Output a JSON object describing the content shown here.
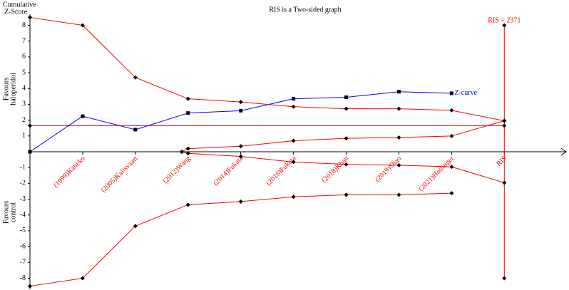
{
  "chart_data": {
    "type": "line",
    "title": "RIS is a Two-sided graph",
    "y_label": [
      "Cumulative",
      "Z-Score"
    ],
    "favours_top": [
      "Favours",
      "haloperidol"
    ],
    "favours_bottom": [
      "Favours",
      "control"
    ],
    "categories": [
      "(1999)Kaneko",
      "(2005)Kalisvaart",
      "(2012)Wang",
      "(2014)Fukata",
      "(2016)Fukata",
      "(2018)Khan",
      "(2019)Shao",
      "(2021)Hollinger",
      "RIS"
    ],
    "category_x": [
      1,
      2,
      3,
      4,
      5,
      6,
      7,
      8,
      9
    ],
    "xlim": [
      0,
      10.2
    ],
    "ylim": [
      -8.7,
      8.7
    ],
    "yticks": [
      8,
      7,
      6,
      5,
      4,
      3,
      2,
      1,
      -1,
      -2,
      -3,
      -4,
      -5,
      -6,
      -7,
      -8
    ],
    "series": [
      {
        "name": "Z-curve",
        "color": "#0000ff",
        "marker": "square",
        "x": [
          0,
          1,
          2,
          3,
          4,
          5,
          6,
          7,
          8
        ],
        "values": [
          0,
          2.25,
          1.4,
          2.45,
          2.6,
          3.35,
          3.45,
          3.8,
          3.7
        ]
      },
      {
        "color": "#ff0000",
        "marker": "diamond",
        "x": [
          0,
          1,
          2,
          3,
          4,
          5,
          6,
          7,
          8,
          9
        ],
        "values": [
          8.5,
          8.0,
          4.7,
          3.35,
          3.15,
          2.85,
          2.72,
          2.72,
          2.62,
          1.96
        ]
      },
      {
        "color": "#ff0000",
        "marker": "diamond",
        "x": [
          0,
          1,
          2,
          3,
          4,
          5,
          6,
          7,
          8
        ],
        "values": [
          -8.5,
          -8.0,
          -4.7,
          -3.35,
          -3.15,
          -2.85,
          -2.72,
          -2.72,
          -2.62
        ]
      },
      {
        "color": "#ff0000",
        "marker": "diamond",
        "x": [
          2.88,
          3,
          4,
          5,
          6,
          7,
          8,
          9
        ],
        "values": [
          0,
          0.2,
          0.35,
          0.7,
          0.85,
          0.9,
          1.0,
          1.96
        ]
      },
      {
        "color": "#ff0000",
        "marker": "diamond",
        "x": [
          2.88,
          3,
          4,
          5,
          6,
          7,
          8,
          9
        ],
        "values": [
          0,
          -0.1,
          -0.3,
          -0.65,
          -0.8,
          -0.85,
          -0.95,
          -1.96
        ]
      }
    ],
    "reference_line": {
      "value": 1.65,
      "color": "#ff0000"
    },
    "ris_line": {
      "label": "RIS = 2371",
      "x": 9,
      "values": [
        8,
        -8
      ],
      "color": "#ff0000"
    }
  }
}
